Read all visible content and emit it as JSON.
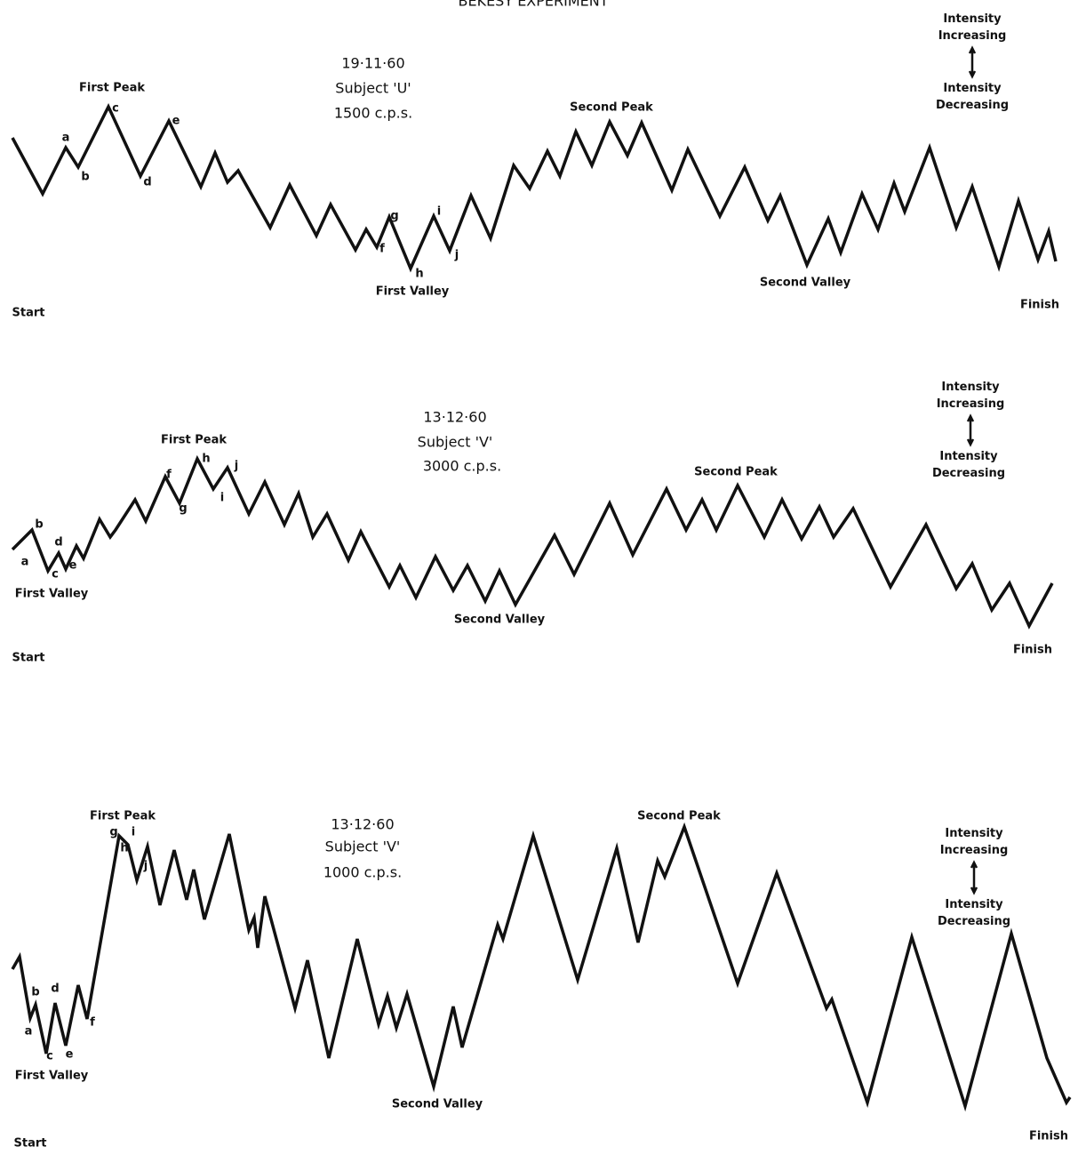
{
  "title": "BEKESY EXPERIMENT",
  "chart_data": [
    {
      "type": "line",
      "date": "19·11·60",
      "subject": "Subject 'U'",
      "frequency": "1500 c.p.s.",
      "start": "Start",
      "finish": "Finish",
      "intensity_up": "Intensity Increasing",
      "intensity_down": "Intensity Decreasing",
      "color": "#111111",
      "xlim": [
        0,
        1213
      ],
      "ylim": [
        0,
        360
      ],
      "annotations": [
        "First Peak",
        "a",
        "b",
        "c",
        "d",
        "e",
        "f",
        "g",
        "h",
        "i",
        "j",
        "First Valley",
        "Second Peak",
        "Second Valley"
      ],
      "x": [
        14,
        48,
        74,
        88,
        122,
        158,
        190,
        226,
        242,
        256,
        268,
        304,
        326,
        356,
        372,
        400,
        412,
        424,
        438,
        462,
        488,
        506,
        530,
        552,
        578,
        596,
        616,
        630,
        648,
        666,
        686,
        706,
        722,
        756,
        774,
        810,
        838,
        864,
        878,
        908,
        932,
        946,
        970,
        988,
        1006,
        1018,
        1046,
        1076,
        1094,
        1124,
        1146,
        1168,
        1180,
        1188
      ],
      "values": [
        205,
        142,
        194,
        172,
        240,
        162,
        224,
        150,
        188,
        155,
        168,
        104,
        152,
        95,
        130,
        79,
        102,
        82,
        116,
        58,
        117,
        78,
        140,
        92,
        174,
        148,
        190,
        162,
        212,
        174,
        223,
        185,
        222,
        146,
        192,
        117,
        172,
        112,
        140,
        62,
        114,
        76,
        142,
        102,
        154,
        122,
        194,
        104,
        150,
        60,
        134,
        68,
        100,
        66
      ]
    },
    {
      "type": "line",
      "date": "13·12·60",
      "subject": "Subject 'V'",
      "frequency": "3000 c.p.s.",
      "start": "Start",
      "finish": "Finish",
      "intensity_up": "Intensity Increasing",
      "intensity_down": "Intensity Decreasing",
      "color": "#111111",
      "xlim": [
        0,
        1213
      ],
      "ylim": [
        0,
        400
      ],
      "annotations": [
        "First Peak",
        "a",
        "b",
        "c",
        "d",
        "e",
        "f",
        "g",
        "h",
        "i",
        "j",
        "First Valley",
        "Second Peak",
        "Second Valley"
      ],
      "x": [
        14,
        36,
        54,
        66,
        74,
        86,
        94,
        112,
        124,
        130,
        152,
        164,
        186,
        202,
        222,
        240,
        256,
        280,
        298,
        320,
        336,
        352,
        368,
        392,
        406,
        438,
        450,
        468,
        490,
        510,
        526,
        546,
        562,
        580,
        624,
        646,
        686,
        712,
        750,
        772,
        790,
        806,
        830,
        860,
        880,
        902,
        922,
        938,
        960,
        1002,
        1042,
        1076,
        1094,
        1116,
        1136,
        1158,
        1184
      ],
      "values": [
        142,
        164,
        118,
        138,
        120,
        146,
        132,
        176,
        156,
        164,
        198,
        174,
        224,
        194,
        244,
        210,
        234,
        182,
        218,
        170,
        205,
        156,
        182,
        130,
        162,
        100,
        124,
        88,
        134,
        96,
        124,
        84,
        118,
        80,
        158,
        114,
        194,
        136,
        210,
        164,
        198,
        164,
        214,
        156,
        198,
        154,
        190,
        156,
        188,
        100,
        170,
        98,
        126,
        74,
        104,
        56,
        104
      ]
    },
    {
      "type": "line",
      "date": "13·12·60",
      "subject": "Subject 'V'",
      "frequency": "1000 c.p.s.",
      "start": "Start",
      "finish": "Finish",
      "intensity_up": "Intensity Increasing",
      "intensity_down": "Intensity Decreasing",
      "color": "#111111",
      "xlim": [
        0,
        1213
      ],
      "ylim": [
        0,
        530
      ],
      "annotations": [
        "First Peak",
        "g",
        "h",
        "i",
        "j",
        "a",
        "b",
        "c",
        "d",
        "e",
        "f",
        "First Valley",
        "Second Peak",
        "Second Valley"
      ],
      "x": [
        14,
        22,
        34,
        40,
        52,
        62,
        74,
        88,
        98,
        134,
        144,
        154,
        166,
        180,
        196,
        210,
        218,
        230,
        258,
        280,
        286,
        290,
        298,
        332,
        346,
        370,
        402,
        426,
        436,
        446,
        458,
        488,
        510,
        520,
        560,
        566,
        600,
        650,
        694,
        718,
        740,
        748,
        770,
        830,
        874,
        930,
        936,
        976,
        1026,
        1086,
        1138,
        1178,
        1200,
        1204
      ],
      "values": [
        200,
        214,
        145,
        160,
        105,
        162,
        114,
        182,
        144,
        350,
        340,
        300,
        338,
        272,
        334,
        278,
        312,
        256,
        352,
        244,
        258,
        224,
        282,
        156,
        210,
        100,
        234,
        138,
        170,
        134,
        172,
        68,
        158,
        112,
        250,
        234,
        350,
        188,
        336,
        230,
        322,
        304,
        360,
        184,
        308,
        156,
        166,
        50,
        236,
        46,
        240,
        100,
        50,
        56
      ]
    }
  ]
}
